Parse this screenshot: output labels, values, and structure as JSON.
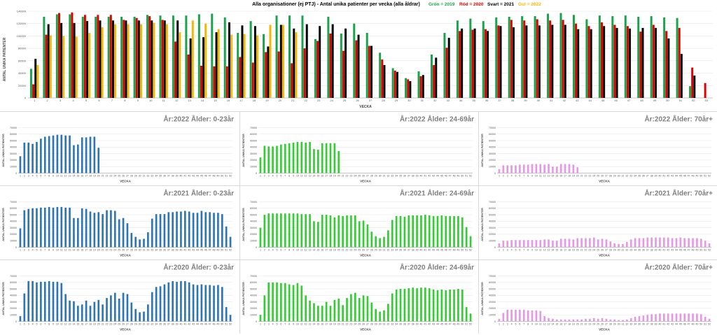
{
  "top": {
    "title": "Alla organisationer (ej PTJ)   -   Antal unika patienter per vecka (alla åldrar)",
    "legend": [
      {
        "label": "Grön = 2019",
        "color": "#1aa34a"
      },
      {
        "label": "Röd = 2020",
        "color": "#e00000"
      },
      {
        "label": "Svart = 2021",
        "color": "#000000"
      },
      {
        "label": "Gul = 2022",
        "color": "#f2b705"
      }
    ],
    "ylabel": "ANTAL UNIKA PATIENTER",
    "xlabel": "VECKA",
    "yticks": [
      "0",
      "20000",
      "40000",
      "60000",
      "80000",
      "100000",
      "120000",
      "140000"
    ]
  },
  "small": {
    "ylabel": "ANTAL UNIKA PATIENTER",
    "xlabel": "VECKA",
    "yticks": [
      "0",
      "10000",
      "20000",
      "30000",
      "40000",
      "50000",
      "60000",
      "70000"
    ]
  },
  "panels": [
    {
      "title": "År:2022   Ålder: 0-23år"
    },
    {
      "title": "År:2022   Ålder: 24-69år"
    },
    {
      "title": "År:2022   Ålder: 70år+"
    },
    {
      "title": "År:2021   Ålder: 0-23år"
    },
    {
      "title": "År:2021   Ålder: 24-69år"
    },
    {
      "title": "År:2021   Ålder: 70år+"
    },
    {
      "title": "År:2020   Ålder: 0-23år"
    },
    {
      "title": "År:2020   Ålder: 24-69år"
    },
    {
      "title": "År:2020   Ålder: 70år+"
    }
  ],
  "chart_data": [
    {
      "type": "bar",
      "title": "Alla organisationer (ej PTJ)   -   Antal unika patienter per vecka (alla åldrar)",
      "xlabel": "VECKA",
      "ylabel": "ANTAL UNIKA PATIENTER",
      "ylim": [
        0,
        140000
      ],
      "categories": [
        "1",
        "2",
        "3",
        "4",
        "5",
        "6",
        "7",
        "8",
        "9",
        "10",
        "11",
        "12",
        "13",
        "14",
        "15",
        "16",
        "17",
        "18",
        "19",
        "20",
        "21",
        "22",
        "23",
        "24",
        "25",
        "26",
        "27",
        "28",
        "29",
        "30",
        "31",
        "32",
        "33",
        "34",
        "35",
        "36",
        "37",
        "38",
        "39",
        "40",
        "41",
        "42",
        "43",
        "44",
        "45",
        "46",
        "47",
        "48",
        "49",
        "50",
        "51",
        "52",
        "53"
      ],
      "series": [
        {
          "name": "2019",
          "color": "#1aa34a",
          "values": [
            47000,
            131000,
            135000,
            135000,
            131000,
            131000,
            131000,
            131000,
            131000,
            134000,
            133000,
            133000,
            133000,
            135000,
            136000,
            130000,
            105000,
            124000,
            103000,
            133000,
            133000,
            133000,
            95000,
            131000,
            104000,
            120000,
            105000,
            73000,
            48000,
            32000,
            43000,
            70000,
            105000,
            125000,
            128000,
            124000,
            130000,
            131000,
            132000,
            132000,
            136000,
            137000,
            134000,
            127000,
            133000,
            132000,
            133000,
            131000,
            132000,
            130000,
            129000,
            19000,
            null
          ]
        },
        {
          "name": "2020",
          "color": "#e00000",
          "values": [
            22000,
            102000,
            137000,
            138000,
            134000,
            134000,
            134000,
            126000,
            129000,
            132000,
            126000,
            91000,
            70000,
            52000,
            51000,
            51000,
            66000,
            57000,
            74000,
            75000,
            56000,
            80000,
            92000,
            104000,
            76000,
            93000,
            84000,
            62000,
            44000,
            30000,
            35000,
            53000,
            81000,
            108000,
            110000,
            111000,
            117000,
            126000,
            125000,
            127000,
            125000,
            126000,
            120000,
            116000,
            122000,
            118000,
            116000,
            107000,
            118000,
            108000,
            113000,
            49000,
            24000
          ]
        },
        {
          "name": "2021",
          "color": "#000000",
          "values": [
            63000,
            119000,
            121000,
            121000,
            124000,
            125000,
            125000,
            125000,
            125000,
            125000,
            125000,
            125000,
            96000,
            98000,
            106000,
            122000,
            117000,
            116000,
            83000,
            118000,
            112000,
            119000,
            116000,
            119000,
            112000,
            102000,
            84000,
            53000,
            42000,
            27000,
            37000,
            65000,
            97000,
            112000,
            112000,
            108000,
            116000,
            114000,
            117000,
            117000,
            118000,
            118000,
            111000,
            111000,
            116000,
            113000,
            112000,
            113000,
            113000,
            96000,
            71000,
            36000,
            null
          ]
        },
        {
          "name": "2022",
          "color": "#f2b705",
          "values": [
            53000,
            101000,
            100000,
            99000,
            105000,
            114000,
            119000,
            119000,
            119000,
            121000,
            119000,
            106000,
            125000,
            120000,
            111000,
            102000,
            103000,
            101000,
            118000,
            118000,
            106000,
            null,
            null,
            null,
            null,
            null,
            null,
            null,
            null,
            null,
            null,
            null,
            null,
            null,
            null,
            null,
            null,
            null,
            null,
            null,
            null,
            null,
            null,
            null,
            null,
            null,
            null,
            null,
            null,
            null,
            null,
            null,
            null
          ]
        }
      ]
    },
    {
      "type": "bar",
      "title": "År:2022   Ålder: 0-23år",
      "xlabel": "VECKA",
      "ylabel": "ANTAL UNIKA PATIENTER",
      "ylim": [
        0,
        70000
      ],
      "color": "#2e75b6",
      "values": [
        26000,
        47000,
        47000,
        45000,
        48000,
        53000,
        56000,
        57000,
        58000,
        59000,
        59000,
        58000,
        58000,
        43000,
        44000,
        55000,
        55000,
        56000,
        56000,
        39000
      ]
    },
    {
      "type": "bar",
      "title": "År:2022   Ålder: 24-69år",
      "xlabel": "VECKA",
      "ylabel": "ANTAL UNIKA PATIENTER",
      "ylim": [
        0,
        70000
      ],
      "color": "#33cc33",
      "values": [
        24000,
        42000,
        41000,
        41000,
        42000,
        44000,
        45000,
        46000,
        47000,
        48000,
        48000,
        47000,
        48000,
        37000,
        36000,
        46000,
        46000,
        46000,
        46000,
        34000
      ]
    },
    {
      "type": "bar",
      "title": "År:2022   Ålder: 70år+",
      "xlabel": "VECKA",
      "ylabel": "ANTAL UNIKA PATIENTER",
      "ylim": [
        0,
        70000
      ],
      "color": "#e599e5",
      "values": [
        6000,
        12000,
        12000,
        12000,
        12000,
        13000,
        13000,
        13000,
        14000,
        14000,
        14000,
        13000,
        14000,
        10000,
        10000,
        14000,
        14000,
        14000,
        13000,
        9000
      ]
    },
    {
      "type": "bar",
      "title": "År:2021   Ålder: 0-23år",
      "xlabel": "VECKA",
      "ylabel": "ANTAL UNIKA PATIENTER",
      "ylim": [
        0,
        70000
      ],
      "color": "#2e75b6",
      "values": [
        29000,
        57000,
        59000,
        60000,
        60000,
        61000,
        61000,
        62000,
        61000,
        62000,
        62000,
        61000,
        61000,
        45000,
        45000,
        60000,
        59000,
        55000,
        53000,
        54000,
        51000,
        57000,
        57000,
        56000,
        43000,
        45000,
        37000,
        22000,
        16000,
        12000,
        13000,
        23000,
        44000,
        51000,
        51000,
        51000,
        54000,
        54000,
        55000,
        55000,
        56000,
        55000,
        53000,
        53000,
        56000,
        54000,
        54000,
        53000,
        53000,
        51000,
        32000,
        16000
      ]
    },
    {
      "type": "bar",
      "title": "År:2021   Ålder: 24-69år",
      "xlabel": "VECKA",
      "ylabel": "ANTAL UNIKA PATIENTER",
      "ylim": [
        0,
        70000
      ],
      "color": "#33cc33",
      "values": [
        30000,
        50000,
        52000,
        52000,
        52000,
        52000,
        52000,
        52000,
        52000,
        52000,
        51000,
        51000,
        51000,
        40000,
        39000,
        50000,
        50000,
        49000,
        46000,
        49000,
        48000,
        49000,
        49000,
        49000,
        40000,
        41000,
        35000,
        24000,
        17000,
        14000,
        16000,
        26000,
        42000,
        48000,
        48000,
        47000,
        49000,
        49000,
        49000,
        49000,
        50000,
        49000,
        48000,
        48000,
        49000,
        48000,
        48000,
        48000,
        48000,
        46000,
        31000,
        17000
      ]
    },
    {
      "type": "bar",
      "title": "År:2021   Ålder: 70år+",
      "xlabel": "VECKA",
      "ylabel": "ANTAL UNIKA PATIENTER",
      "ylim": [
        0,
        70000
      ],
      "color": "#e599e5",
      "values": [
        6000,
        10000,
        10000,
        11000,
        11000,
        11000,
        11000,
        11000,
        11000,
        11000,
        11000,
        12000,
        12000,
        10000,
        10000,
        13000,
        13000,
        13000,
        12000,
        14000,
        14000,
        14000,
        14000,
        15000,
        12000,
        13000,
        12000,
        9000,
        6000,
        5000,
        5000,
        8000,
        12000,
        14000,
        14000,
        14000,
        15000,
        15000,
        15000,
        15000,
        15000,
        15000,
        14000,
        14000,
        15000,
        14000,
        14000,
        14000,
        14000,
        13000,
        10000,
        6000
      ]
    },
    {
      "type": "bar",
      "title": "År:2020   Ålder: 0-23år",
      "xlabel": "VECKA",
      "ylabel": "ANTAL UNIKA PATIENTER",
      "ylim": [
        0,
        70000
      ],
      "color": "#2e75b6",
      "values": [
        8000,
        43000,
        62000,
        62000,
        60000,
        61000,
        61000,
        62000,
        61000,
        61000,
        59000,
        42000,
        32000,
        31000,
        24000,
        26000,
        32000,
        24000,
        30000,
        33000,
        26000,
        36000,
        40000,
        44000,
        35000,
        44000,
        42000,
        29000,
        19000,
        14000,
        15000,
        26000,
        45000,
        53000,
        54000,
        57000,
        60000,
        62000,
        61000,
        62000,
        62000,
        60000,
        57000,
        56000,
        57000,
        56000,
        56000,
        55000,
        56000,
        53000,
        22000,
        10000,
        null
      ]
    },
    {
      "type": "bar",
      "title": "År:2020   Ålder: 24-69år",
      "xlabel": "VECKA",
      "ylabel": "ANTAL UNIKA PATIENTER",
      "ylim": [
        0,
        70000
      ],
      "color": "#33cc33",
      "values": [
        10000,
        40000,
        60000,
        60000,
        60000,
        59000,
        59000,
        57000,
        56000,
        59000,
        55000,
        40000,
        32000,
        28000,
        24000,
        24000,
        30000,
        24000,
        33000,
        35000,
        25000,
        36000,
        42000,
        44000,
        36000,
        40000,
        39000,
        29000,
        19000,
        15000,
        17000,
        27000,
        43000,
        49000,
        50000,
        50000,
        51000,
        52000,
        51000,
        52000,
        52000,
        51000,
        49000,
        48000,
        49000,
        48000,
        49000,
        49000,
        50000,
        49000,
        22000,
        12000,
        null
      ]
    },
    {
      "type": "bar",
      "title": "År:2020   Ålder: 70år+",
      "xlabel": "VECKA",
      "ylabel": "ANTAL UNIKA PATIENTER",
      "ylim": [
        0,
        70000
      ],
      "color": "#e599e5",
      "values": [
        4000,
        13000,
        18000,
        18000,
        18000,
        18000,
        18000,
        17000,
        17000,
        17000,
        16000,
        8000,
        5000,
        4000,
        3000,
        3000,
        3000,
        3000,
        3000,
        3000,
        3000,
        4000,
        4000,
        5000,
        4000,
        5000,
        4000,
        3000,
        3000,
        2000,
        2000,
        3000,
        5000,
        7000,
        8000,
        9000,
        10000,
        11000,
        11000,
        12000,
        12000,
        12000,
        12000,
        12000,
        12000,
        12000,
        12000,
        12000,
        12000,
        11000,
        7000,
        4000,
        null
      ]
    }
  ]
}
